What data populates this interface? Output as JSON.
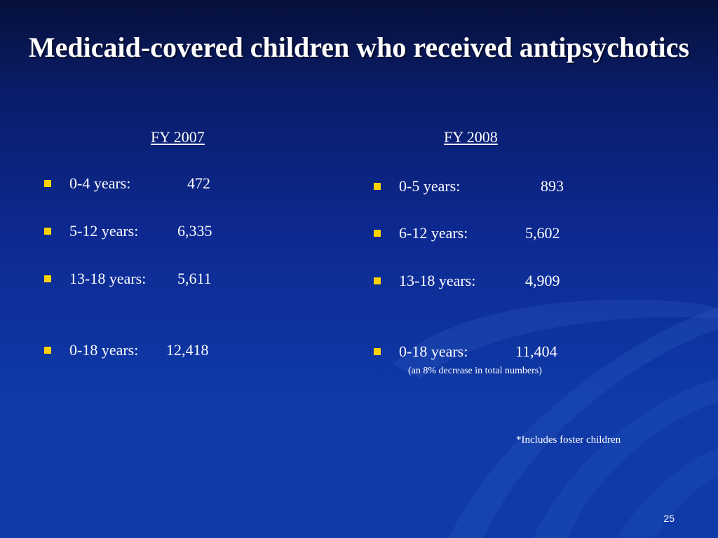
{
  "slide": {
    "title": "Medicaid-covered children who received antipsychotics",
    "page_number": "25"
  },
  "columns": {
    "left": {
      "header": "FY 2007",
      "items": [
        {
          "label": "0-4 years:",
          "value": "472"
        },
        {
          "label": "5-12 years:",
          "value": "6,335"
        },
        {
          "label": "13-18 years:",
          "value": "5,611"
        },
        {
          "label": "0-18 years:",
          "value": "12,418"
        }
      ]
    },
    "right": {
      "header": "FY 2008",
      "items": [
        {
          "label": "0-5 years:",
          "value": "893"
        },
        {
          "label": "6-12 years:",
          "value": "5,602"
        },
        {
          "label": "13-18 years:",
          "value": "4,909"
        },
        {
          "label": "0-18 years:",
          "value": "11,404"
        }
      ],
      "note": "(an 8% decrease in total numbers)"
    }
  },
  "footnote": "*Includes foster children",
  "colors": {
    "bullet": "#ffd200",
    "background_dark": "#06103a",
    "background_light": "#0f3aa8"
  }
}
